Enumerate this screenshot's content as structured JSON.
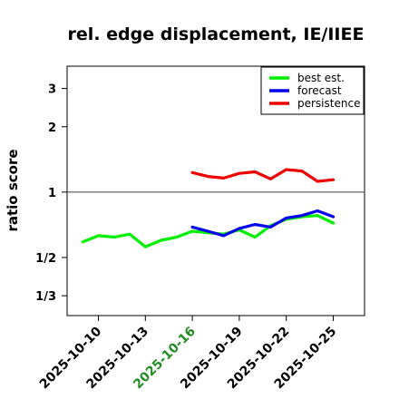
{
  "chart_data": {
    "type": "line",
    "title": "rel. edge displacement, IE/IIEE",
    "xlabel": "",
    "ylabel": "ratio score",
    "y_scale": "log",
    "ylim": [
      0.27,
      3.8
    ],
    "xlim": [
      "2025-10-08",
      "2025-10-27"
    ],
    "y_ticks": [
      {
        "value": 3,
        "label": "3"
      },
      {
        "value": 2,
        "label": "2"
      },
      {
        "value": 1,
        "label": "1"
      },
      {
        "value": 0.5,
        "label": "1/2"
      },
      {
        "value": 0.3333,
        "label": "1/3"
      }
    ],
    "x_ticks": [
      {
        "date": "2025-10-10",
        "label": "2025-10-10",
        "color": "#000000"
      },
      {
        "date": "2025-10-13",
        "label": "2025-10-13",
        "color": "#000000"
      },
      {
        "date": "2025-10-16",
        "label": "2025-10-16",
        "color": "#228b22"
      },
      {
        "date": "2025-10-19",
        "label": "2025-10-19",
        "color": "#000000"
      },
      {
        "date": "2025-10-22",
        "label": "2025-10-22",
        "color": "#000000"
      },
      {
        "date": "2025-10-25",
        "label": "2025-10-25",
        "color": "#000000"
      }
    ],
    "reference_line": 1,
    "grid": false,
    "legend_position": "top-right",
    "series": [
      {
        "name": "best est.",
        "color": "#00ee00",
        "x": [
          "2025-10-09",
          "2025-10-10",
          "2025-10-11",
          "2025-10-12",
          "2025-10-13",
          "2025-10-14",
          "2025-10-15",
          "2025-10-16",
          "2025-10-17",
          "2025-10-18",
          "2025-10-19",
          "2025-10-20",
          "2025-10-21",
          "2025-10-22",
          "2025-10-23",
          "2025-10-24",
          "2025-10-25"
        ],
        "y": [
          0.59,
          0.63,
          0.62,
          0.64,
          0.56,
          0.6,
          0.62,
          0.66,
          0.65,
          0.64,
          0.67,
          0.62,
          0.7,
          0.75,
          0.77,
          0.78,
          0.72
        ]
      },
      {
        "name": "forecast",
        "color": "#0000ee",
        "x": [
          "2025-10-16",
          "2025-10-17",
          "2025-10-18",
          "2025-10-19",
          "2025-10-20",
          "2025-10-21",
          "2025-10-22",
          "2025-10-23",
          "2025-10-24",
          "2025-10-25"
        ],
        "y": [
          0.69,
          0.66,
          0.63,
          0.68,
          0.71,
          0.69,
          0.76,
          0.78,
          0.82,
          0.77
        ]
      },
      {
        "name": "persistence",
        "color": "#ee0000",
        "x": [
          "2025-10-16",
          "2025-10-17",
          "2025-10-18",
          "2025-10-19",
          "2025-10-20",
          "2025-10-21",
          "2025-10-22",
          "2025-10-23",
          "2025-10-24",
          "2025-10-25"
        ],
        "y": [
          1.23,
          1.18,
          1.16,
          1.22,
          1.24,
          1.15,
          1.27,
          1.25,
          1.12,
          1.14
        ]
      }
    ]
  }
}
